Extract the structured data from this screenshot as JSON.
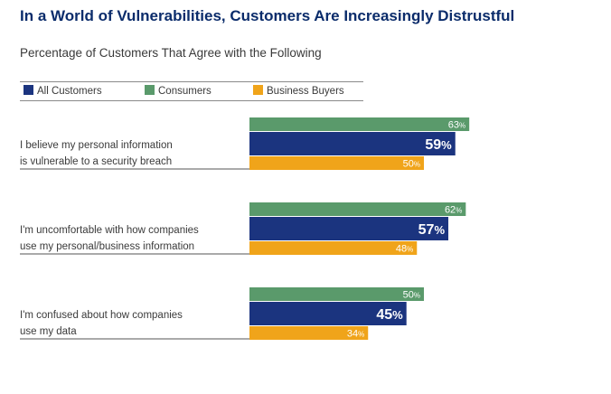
{
  "title": "In a World of Vulnerabilities, Customers Are Increasingly Distrustful",
  "subtitle": "Percentage of Customers That Agree with the Following",
  "chart_data": {
    "type": "bar",
    "orientation": "horizontal",
    "title": "In a World of Vulnerabilities, Customers Are Increasingly Distrustful",
    "subtitle": "Percentage of Customers That Agree with the Following",
    "legend_placement": "top-left",
    "grid": false,
    "xlim": [
      0,
      100
    ],
    "categories": [
      [
        "I believe my personal information",
        "is vulnerable to a security breach"
      ],
      [
        "I'm uncomfortable with how companies",
        "use my personal/business information"
      ],
      [
        "I'm confused about how companies",
        "use my data"
      ]
    ],
    "series": [
      {
        "name": "Consumers",
        "color": "#5a9a6b",
        "values": [
          63,
          62,
          50
        ]
      },
      {
        "name": "All Customers",
        "color": "#1b347f",
        "values": [
          59,
          57,
          45
        ]
      },
      {
        "name": "Business Buyers",
        "color": "#f0a41a",
        "values": [
          50,
          48,
          34
        ]
      }
    ],
    "legend_order": [
      "All Customers",
      "Consumers",
      "Business Buyers"
    ],
    "value_suffix": "%"
  }
}
